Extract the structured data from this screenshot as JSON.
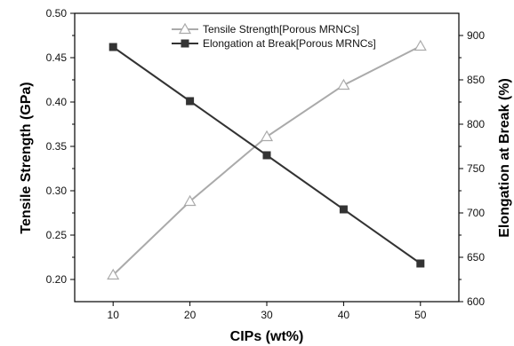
{
  "chart_data": {
    "type": "line",
    "x": [
      10,
      20,
      30,
      40,
      50
    ],
    "xlabel": "CIPs (wt%)",
    "ylabel_left": "Tensile Strength (GPa)",
    "ylabel_right": "Elongation at Break (%)",
    "xlim": [
      5,
      55
    ],
    "ylim_left": [
      0.175,
      0.5
    ],
    "ylim_right": [
      600,
      925
    ],
    "x_ticks": [
      "10",
      "20",
      "30",
      "40",
      "50"
    ],
    "y_left_ticks": [
      "0.20",
      "0.25",
      "0.30",
      "0.35",
      "0.40",
      "0.45",
      "0.50"
    ],
    "y_right_ticks": [
      "600",
      "650",
      "700",
      "750",
      "800",
      "850",
      "900"
    ],
    "grid": false,
    "legend_position": "top-center",
    "series": [
      {
        "name": "Tensile Strength[Porous MRNCs]",
        "axis": "left",
        "marker": "open-triangle",
        "color": "#aaaaaa",
        "values": [
          0.205,
          0.288,
          0.361,
          0.419,
          0.463
        ]
      },
      {
        "name": "Elongation at Break[Porous MRNCs]",
        "axis": "right",
        "marker": "filled-square",
        "color": "#333333",
        "values": [
          887,
          826,
          765,
          704,
          643
        ]
      }
    ]
  }
}
